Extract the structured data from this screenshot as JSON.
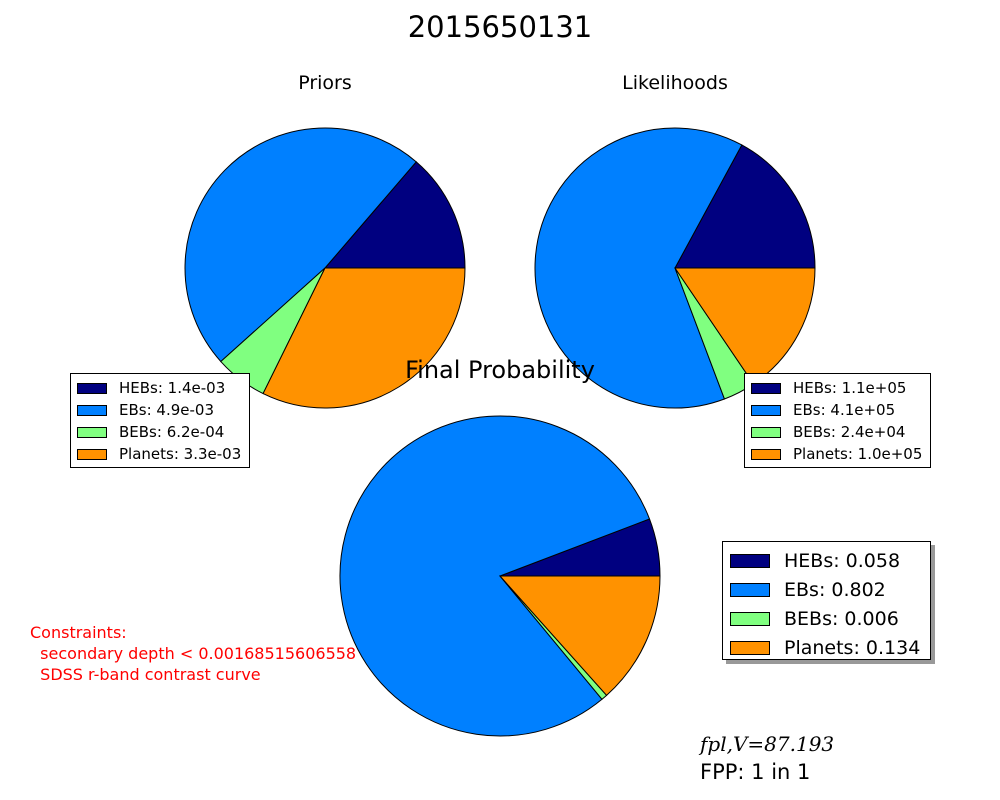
{
  "title": "2015650131",
  "colors": {
    "HEBs": "#000080",
    "EBs": "#0080ff",
    "BEBs": "#80ff80",
    "Planets": "#ff9200"
  },
  "chart_data": [
    {
      "type": "pie",
      "title": "Priors",
      "start_angle_deg": 0,
      "direction": "counterclockwise",
      "legend_placement": "bottom-left",
      "slices": [
        {
          "name": "HEBs",
          "value": 0.0014,
          "label": "HEBs: 1.4e-03"
        },
        {
          "name": "EBs",
          "value": 0.0049,
          "label": "EBs: 4.9e-03"
        },
        {
          "name": "BEBs",
          "value": 0.00062,
          "label": "BEBs: 6.2e-04"
        },
        {
          "name": "Planets",
          "value": 0.0033,
          "label": "Planets: 3.3e-03"
        }
      ]
    },
    {
      "type": "pie",
      "title": "Likelihoods",
      "start_angle_deg": 0,
      "direction": "counterclockwise",
      "legend_placement": "bottom-right",
      "slices": [
        {
          "name": "HEBs",
          "value": 110000,
          "label": "HEBs: 1.1e+05"
        },
        {
          "name": "EBs",
          "value": 410000,
          "label": "EBs: 4.1e+05"
        },
        {
          "name": "BEBs",
          "value": 24000,
          "label": "BEBs: 2.4e+04"
        },
        {
          "name": "Planets",
          "value": 100000,
          "label": "Planets: 1.0e+05"
        }
      ]
    },
    {
      "type": "pie",
      "title": "Final Probability",
      "start_angle_deg": 0,
      "direction": "counterclockwise",
      "legend_placement": "right",
      "slices": [
        {
          "name": "HEBs",
          "value": 0.058,
          "label": "HEBs: 0.058"
        },
        {
          "name": "EBs",
          "value": 0.802,
          "label": "EBs: 0.802"
        },
        {
          "name": "BEBs",
          "value": 0.006,
          "label": "BEBs: 0.006"
        },
        {
          "name": "Planets",
          "value": 0.134,
          "label": "Planets: 0.134"
        }
      ]
    }
  ],
  "constraints": {
    "heading": "Constraints:",
    "items": [
      "  secondary depth < 0.00168515606558",
      "  SDSS r-band contrast curve"
    ]
  },
  "fpl_text": "fpl,V=87.193",
  "fpp_text": "FPP: 1 in 1"
}
